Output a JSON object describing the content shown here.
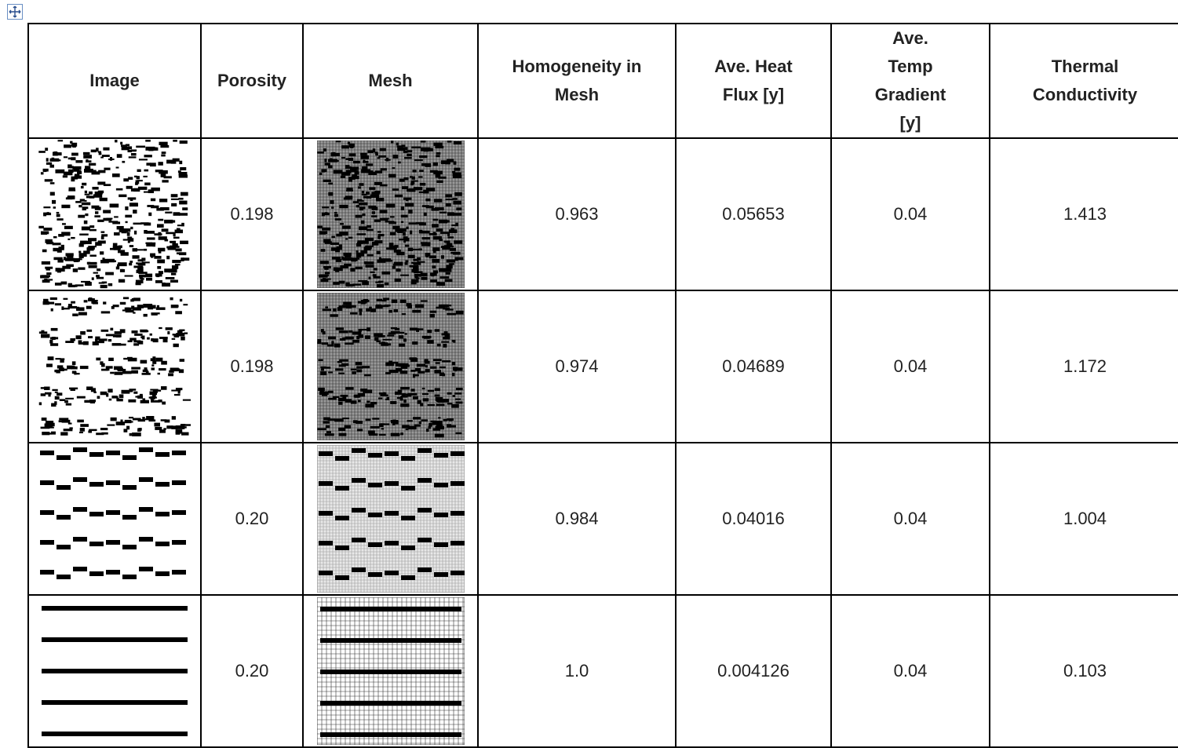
{
  "table": {
    "header": [
      "Image",
      "Porosity",
      "Mesh",
      "Homogeneity in Mesh",
      "Ave. Heat Flux [y]",
      "Ave. Temp Gradient [y]",
      "Thermal Conductivity"
    ],
    "rows": [
      {
        "porosity": "0.198",
        "homogeneity": "0.963",
        "heat_flux": "0.05653",
        "temp_gradient": "0.04",
        "conductivity": "1.413"
      },
      {
        "porosity": "0.198",
        "homogeneity": "0.974",
        "heat_flux": "0.04689",
        "temp_gradient": "0.04",
        "conductivity": "1.172"
      },
      {
        "porosity": "0.20",
        "homogeneity": "0.984",
        "heat_flux": "0.04016",
        "temp_gradient": "0.04",
        "conductivity": "1.004"
      },
      {
        "porosity": "0.20",
        "homogeneity": "1.0",
        "heat_flux": "0.004126",
        "temp_gradient": "0.04",
        "conductivity": "0.103"
      }
    ]
  }
}
